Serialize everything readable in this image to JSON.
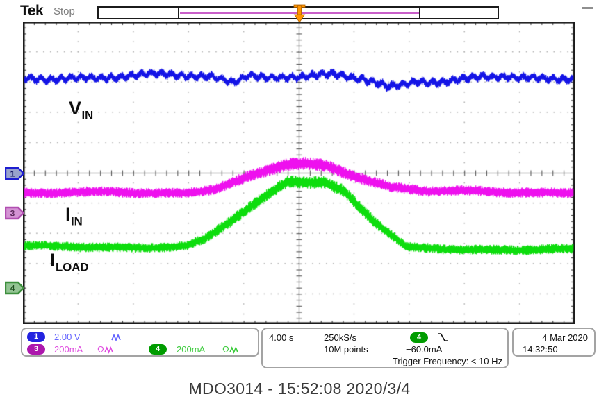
{
  "header": {
    "logo": "Tek",
    "acq_status": "Stop"
  },
  "plot": {
    "labels": {
      "v_in": {
        "main": "V",
        "sub": "IN"
      },
      "i_in": {
        "main": "I",
        "sub": "IN"
      },
      "i_load": {
        "main": "I",
        "sub": "LOAD"
      }
    },
    "channel_markers": {
      "ch1": "1",
      "ch3": "3",
      "ch4": "4"
    }
  },
  "readouts": {
    "ch1": {
      "badge": "1",
      "scale": "2.00 V"
    },
    "ch3": {
      "badge": "3",
      "scale": "200mA",
      "impedance": "Ω"
    },
    "ch4": {
      "badge": "4",
      "scale": "200mA",
      "impedance": "Ω"
    },
    "horizontal": {
      "timebase": "4.00 s",
      "sample_rate": "250kS/s",
      "record_length": "10M points"
    },
    "trigger": {
      "badge": "4",
      "level": "−60.0mA",
      "frequency": "Trigger Frequency: < 10 Hz"
    },
    "datetime": {
      "date": "4 Mar 2020",
      "time": "14:32:50"
    }
  },
  "caption": "MDO3014 - 15:52:08  2020/3/4",
  "colors": {
    "ch1_trace": "#1414e6",
    "ch3_trace": "#ee10ee",
    "ch4_trace": "#0ddd0d",
    "trigger_marker": "#ff9500",
    "acq_window": "#c95fc9"
  },
  "chart_data": {
    "type": "line",
    "title": "MDO3014 - 15:52:08  2020/3/4",
    "x_axis": {
      "divisions": 10,
      "per_division": "4.00 s",
      "total_span": "40 s"
    },
    "y_axis": {
      "divisions": 10
    },
    "grid": {
      "style": "dotted",
      "center_crosshair": true,
      "minor_ticks_per_div": 5
    },
    "trigger": {
      "source_channel": "4",
      "slope": "falling",
      "level": "−60.0mA",
      "frequency": "< 10 Hz",
      "position_div": 5
    },
    "series": [
      {
        "name": "V_IN",
        "channel": "1",
        "color": "#1414e6",
        "scale_per_div": "2.00 V",
        "description": "Input voltage: flat noisy trace about 3.1 divisions above center for full record",
        "anchors_div": [
          [
            0,
            3.15
          ],
          [
            3.4,
            3.2
          ],
          [
            3.8,
            3.0
          ],
          [
            4.1,
            3.3
          ],
          [
            5.0,
            3.1
          ],
          [
            5.6,
            3.25
          ],
          [
            6.6,
            2.85
          ],
          [
            7.1,
            3.1
          ],
          [
            7.6,
            3.0
          ],
          [
            8.3,
            3.2
          ],
          [
            9.0,
            3.05
          ],
          [
            10,
            3.15
          ]
        ],
        "noise_band_div": 0.13,
        "wander_div": 0.06,
        "zigzag": true
      },
      {
        "name": "I_IN",
        "channel": "3",
        "color": "#ee10ee",
        "scale_per_div": "200mA",
        "description": "Input current: flat, ramps up ~1 division to a rounded hump centered at trigger, returns to baseline",
        "anchors_div": [
          [
            0,
            -0.66
          ],
          [
            2.9,
            -0.66
          ],
          [
            3.5,
            -0.5
          ],
          [
            4.2,
            -0.08
          ],
          [
            4.75,
            0.25
          ],
          [
            5.05,
            0.3
          ],
          [
            5.5,
            0.22
          ],
          [
            6.0,
            -0.08
          ],
          [
            6.7,
            -0.48
          ],
          [
            7.35,
            -0.62
          ],
          [
            10,
            -0.64
          ]
        ],
        "noise_band_div": 0.17,
        "wander_div": 0.03,
        "zigzag": false
      },
      {
        "name": "I_LOAD",
        "channel": "4",
        "color": "#0ddd0d",
        "scale_per_div": "200mA",
        "description": "Load current: flat, ramps up ~2.2 divisions to plateau just below center, falls back to baseline",
        "anchors_div": [
          [
            0,
            -2.45
          ],
          [
            2.95,
            -2.45
          ],
          [
            3.3,
            -2.2
          ],
          [
            4.15,
            -1.1
          ],
          [
            4.8,
            -0.25
          ],
          [
            5.45,
            -0.3
          ],
          [
            5.8,
            -0.6
          ],
          [
            6.35,
            -1.6
          ],
          [
            6.95,
            -2.5
          ],
          [
            10,
            -2.55
          ]
        ],
        "noise_band_div": 0.16,
        "wander_div": 0.03,
        "zigzag": false
      }
    ]
  }
}
